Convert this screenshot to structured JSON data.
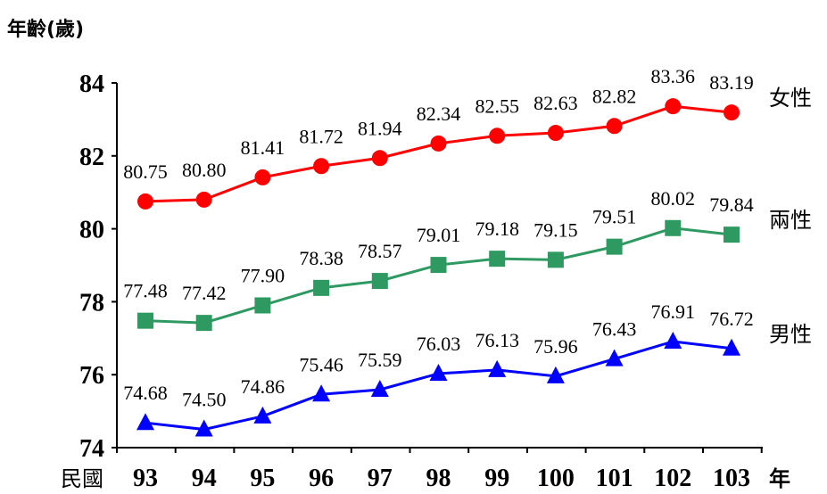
{
  "chart_data": {
    "type": "line",
    "ylabel": "年齡(歲)",
    "x_prefix_label": "民國",
    "x_unit_label": "年",
    "categories": [
      "93",
      "94",
      "95",
      "96",
      "97",
      "98",
      "99",
      "100",
      "101",
      "102",
      "103"
    ],
    "ylim": [
      74,
      84
    ],
    "yticks": [
      "74",
      "76",
      "78",
      "80",
      "82",
      "84"
    ],
    "grid": false,
    "series": [
      {
        "name": "女性",
        "color": "#ff0000",
        "marker": "circle",
        "values": [
          80.75,
          80.8,
          81.41,
          81.72,
          81.94,
          82.34,
          82.55,
          82.63,
          82.82,
          83.36,
          83.19
        ],
        "labels": [
          "80.75",
          "80.80",
          "81.41",
          "81.72",
          "81.94",
          "82.34",
          "82.55",
          "82.63",
          "82.82",
          "83.36",
          "83.19"
        ]
      },
      {
        "name": "兩性",
        "color": "#2e9a62",
        "marker": "square",
        "values": [
          77.48,
          77.42,
          77.9,
          78.38,
          78.57,
          79.01,
          79.18,
          79.15,
          79.51,
          80.02,
          79.84
        ],
        "labels": [
          "77.48",
          "77.42",
          "77.90",
          "78.38",
          "78.57",
          "79.01",
          "79.18",
          "79.15",
          "79.51",
          "80.02",
          "79.84"
        ]
      },
      {
        "name": "男性",
        "color": "#0000ff",
        "marker": "triangle",
        "values": [
          74.68,
          74.5,
          74.86,
          75.46,
          75.59,
          76.03,
          76.13,
          75.96,
          76.43,
          76.91,
          76.72
        ],
        "labels": [
          "74.68",
          "74.50",
          "74.86",
          "75.46",
          "75.59",
          "76.03",
          "76.13",
          "75.96",
          "76.43",
          "76.91",
          "76.72"
        ]
      }
    ]
  }
}
